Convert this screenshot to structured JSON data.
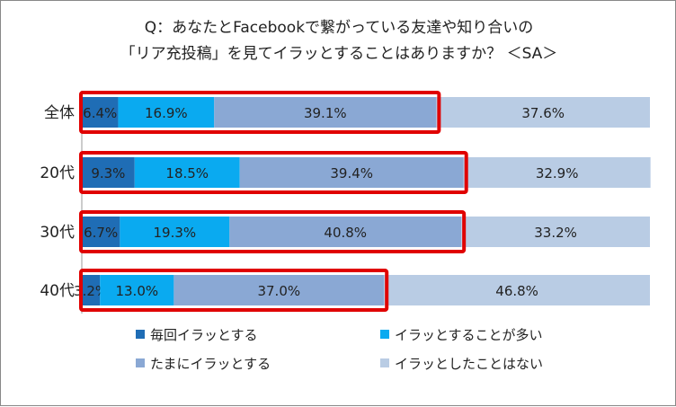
{
  "chart_data": {
    "type": "bar",
    "orientation": "horizontal",
    "stacked": "100%",
    "title": [
      "Q：あなたとFacebookで繋がっている友達や知り合いの",
      "「リア充投稿」を見てイラッとすることはありますか？ ＜SA＞"
    ],
    "categories": [
      "全体",
      "20代",
      "30代",
      "40代"
    ],
    "series": [
      {
        "name": "毎回イラッとする",
        "values": [
          6.4,
          9.3,
          6.7,
          3.2
        ],
        "labels": [
          "6.4%",
          "9.3%",
          "6.7%",
          "3.2%"
        ],
        "color": "#1f6db5"
      },
      {
        "name": "イラッとすることが多い",
        "values": [
          16.9,
          18.5,
          19.3,
          13.0
        ],
        "labels": [
          "16.9%",
          "18.5%",
          "19.3%",
          "13.0%"
        ],
        "color": "#0aaaf0"
      },
      {
        "name": "たまにイラッとする",
        "values": [
          39.1,
          39.4,
          40.8,
          37.0
        ],
        "labels": [
          "39.1%",
          "39.4%",
          "40.8%",
          "37.0%"
        ],
        "color": "#8aa8d4"
      },
      {
        "name": "イラッとしたことはない",
        "values": [
          37.6,
          32.9,
          33.2,
          46.8
        ],
        "labels": [
          "37.6%",
          "32.9%",
          "33.2%",
          "46.8%"
        ],
        "color": "#b9cce4"
      }
    ],
    "highlight_color": "#e00000",
    "legend_position": "bottom",
    "xlim": [
      0,
      100
    ],
    "grid": false
  }
}
